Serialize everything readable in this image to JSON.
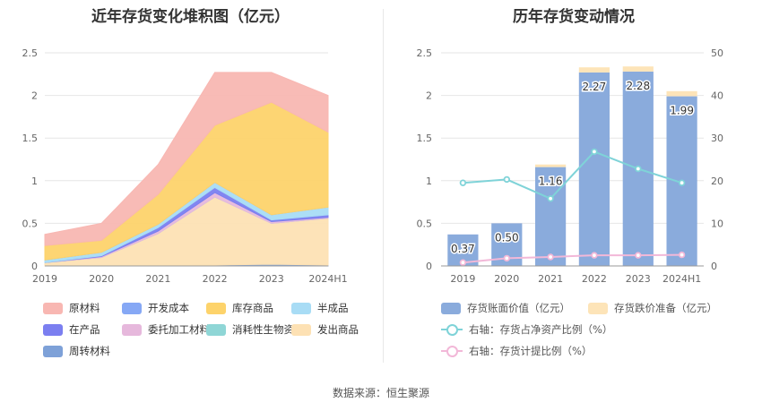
{
  "left": {
    "title": "近年存货变化堆积图（亿元）"
  },
  "right": {
    "title": "历年存货变动情况"
  },
  "source": "数据来源：恒生聚源",
  "chart_data": [
    {
      "type": "area",
      "stacked": true,
      "title": "近年存货变化堆积图（亿元）",
      "categories": [
        "2019",
        "2020",
        "2021",
        "2022",
        "2023",
        "2024H1"
      ],
      "ylim": [
        0,
        2.5
      ],
      "yticks": [
        "0",
        "0.5",
        "1",
        "1.5",
        "2",
        "2.5"
      ],
      "series": [
        {
          "name": "周转材料",
          "color": "#7ea1d8",
          "values": [
            0.0,
            0.0,
            0.0,
            0.01,
            0.02,
            0.01
          ]
        },
        {
          "name": "发出商品",
          "color": "#fde1b4",
          "values": [
            0.04,
            0.1,
            0.38,
            0.8,
            0.48,
            0.55
          ]
        },
        {
          "name": "消耗性生物资产",
          "color": "#8fd6d6",
          "values": [
            0.0,
            0.0,
            0.0,
            0.0,
            0.0,
            0.0
          ]
        },
        {
          "name": "委托加工材料",
          "color": "#e6b8dc",
          "values": [
            0.0,
            0.01,
            0.03,
            0.05,
            0.02,
            0.01
          ]
        },
        {
          "name": "在产品",
          "color": "#7b7ff0",
          "values": [
            0.0,
            0.01,
            0.04,
            0.06,
            0.02,
            0.03
          ]
        },
        {
          "name": "半成品",
          "color": "#a8dcf5",
          "values": [
            0.03,
            0.04,
            0.04,
            0.06,
            0.06,
            0.09
          ]
        },
        {
          "name": "开发成本",
          "color": "#86a8f5",
          "values": [
            0.0,
            0.0,
            0.0,
            0.0,
            0.0,
            0.0
          ]
        },
        {
          "name": "库存商品",
          "color": "#fdd36b",
          "values": [
            0.17,
            0.14,
            0.35,
            0.67,
            1.32,
            0.88
          ]
        },
        {
          "name": "原材料",
          "color": "#f8b7b2",
          "values": [
            0.13,
            0.2,
            0.35,
            0.62,
            0.35,
            0.43
          ]
        }
      ],
      "legend_order": [
        "原材料",
        "开发成本",
        "库存商品",
        "半成品",
        "在产品",
        "委托加工材料",
        "消耗性生物资产",
        "发出商品",
        "周转材料"
      ],
      "legend_position": "bottom",
      "grid": true
    },
    {
      "type": "bar",
      "title": "历年存货变动情况",
      "categories": [
        "2019",
        "2020",
        "2021",
        "2022",
        "2023",
        "2024H1"
      ],
      "ylim": [
        0,
        2.5
      ],
      "yticks": [
        "0",
        "0.5",
        "1",
        "1.5",
        "2",
        "2.5"
      ],
      "y2lim": [
        0,
        50
      ],
      "y2ticks": [
        "0",
        "10",
        "20",
        "30",
        "40",
        "50"
      ],
      "series": [
        {
          "name": "存货账面价值（亿元）",
          "color": "#8aabdc",
          "stack": "inv",
          "values": [
            0.37,
            0.5,
            1.16,
            2.27,
            2.28,
            1.99
          ],
          "labels": [
            "0.37",
            "0.50",
            "1.16",
            "2.27",
            "2.28",
            "1.99"
          ]
        },
        {
          "name": "存货跌价准备（亿元）",
          "color": "#fde4b8",
          "stack": "inv",
          "values": [
            0.0,
            0.0,
            0.03,
            0.06,
            0.06,
            0.06
          ]
        },
        {
          "name": "右轴：存货占净资产比例（%）",
          "color": "#7fd3d8",
          "type": "line",
          "axis": "right",
          "values": [
            19.5,
            20.3,
            15.8,
            26.8,
            22.8,
            19.5
          ]
        },
        {
          "name": "右轴：存货计提比例（%）",
          "color": "#f2b8d8",
          "type": "line",
          "axis": "right",
          "values": [
            0.8,
            1.8,
            2.1,
            2.5,
            2.5,
            2.6
          ]
        }
      ],
      "legend_position": "bottom",
      "grid": true
    }
  ]
}
